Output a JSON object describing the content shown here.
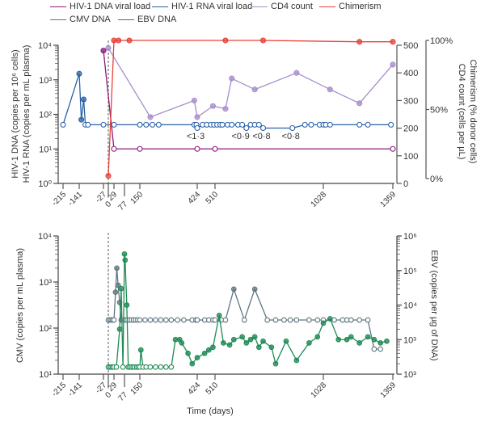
{
  "legend": [
    {
      "label": "HIV-1 DNA viral load",
      "color": "#8b1a7a"
    },
    {
      "label": "HIV-1 RNA viral load",
      "color": "#2a62a8"
    },
    {
      "label": "CD4 count",
      "color": "#a88dcc"
    },
    {
      "label": "Chimerism",
      "color": "#e8413a"
    },
    {
      "label": "CMV DNA",
      "color": "#5f7680"
    },
    {
      "label": "EBV DNA",
      "color": "#1f8a55"
    }
  ],
  "chart_data": [
    {
      "type": "line",
      "panel": "top",
      "xlabel": "",
      "x_ticks": [
        -215,
        -141,
        -27,
        0,
        29,
        77,
        150,
        424,
        510,
        1028,
        1359
      ],
      "x_tick_labels": [
        "-215",
        "-141",
        "-27",
        "0",
        "29",
        "77",
        "150",
        "424",
        "510",
        "1028",
        "1359"
      ],
      "ylabel_left": [
        "HIV-1 DNA (copies per 10⁶ cells)",
        "HIV-1 RNA (copies per mL plasma)"
      ],
      "y_left_scale": "log",
      "y_left_range": [
        1,
        10000
      ],
      "y_left_tick_labels": [
        "10⁰",
        "10¹",
        "10²",
        "10³",
        "10⁴"
      ],
      "ylabel_right": [
        "Chimerism (% donor cells)",
        "CD4 count (cells per µL)"
      ],
      "y_right1_range": [
        0,
        500
      ],
      "y_right1_tick_labels": [
        "0",
        "100",
        "200",
        "300",
        "400",
        "500"
      ],
      "y_right2_range": [
        0,
        100
      ],
      "y_right2_tick_labels": [
        "0%",
        "50%",
        "100%"
      ],
      "transplant_day": 0,
      "annotations": [
        {
          "text": "<1·3",
          "x": 424
        },
        {
          "text": "<0·9",
          "x": 640
        },
        {
          "text": "<0·8",
          "x": 740
        },
        {
          "text": "<0·8",
          "x": 880
        }
      ],
      "series": [
        {
          "name": "HIV-1 DNA viral load",
          "color": "#8b1a7a",
          "axis": "left",
          "marker": "open",
          "x": [
            -27,
            29,
            150,
            424,
            510,
            1359
          ],
          "y": [
            7000,
            10,
            10,
            10,
            10,
            10
          ]
        },
        {
          "name": "HIV-1 RNA viral load",
          "color": "#2a62a8",
          "axis": "left",
          "marker": "mixed",
          "x": [
            -215,
            -141,
            -131,
            -120,
            -112,
            -100,
            -27,
            29,
            150,
            180,
            210,
            240,
            410,
            420,
            424,
            450,
            470,
            490,
            505,
            520,
            535,
            545,
            570,
            590,
            620,
            640,
            660,
            680,
            700,
            720,
            740,
            880,
            940,
            970,
            1010,
            1028,
            1040,
            1060,
            1200,
            1240,
            1350
          ],
          "y": [
            50,
            1500,
            70,
            270,
            50,
            50,
            50,
            50,
            50,
            50,
            50,
            50,
            50,
            50,
            40,
            50,
            50,
            50,
            50,
            50,
            50,
            50,
            50,
            50,
            50,
            50,
            40,
            50,
            50,
            50,
            40,
            40,
            50,
            50,
            50,
            50,
            50,
            50,
            50,
            50,
            50
          ],
          "filled": [
            false,
            true,
            true,
            true,
            false,
            false,
            false,
            false,
            false,
            false,
            false,
            false,
            false,
            false,
            false,
            false,
            false,
            false,
            false,
            false,
            false,
            false,
            false,
            false,
            false,
            false,
            false,
            false,
            false,
            false,
            false,
            false,
            false,
            false,
            false,
            false,
            false,
            false,
            false,
            false,
            false
          ]
        },
        {
          "name": "CD4 count",
          "color": "#a88dcc",
          "axis": "right1",
          "marker": "filled",
          "x": [
            0,
            200,
            410,
            424,
            500,
            560,
            590,
            700,
            900,
            1060,
            1200,
            1359
          ],
          "y": [
            490,
            240,
            300,
            240,
            280,
            270,
            380,
            340,
            400,
            340,
            290,
            430
          ]
        },
        {
          "name": "Chimerism",
          "color": "#e8413a",
          "axis": "right2",
          "marker": "filled",
          "x": [
            0,
            29,
            50,
            100,
            560,
            740,
            1200,
            1359
          ],
          "y": [
            2,
            100,
            100,
            100,
            100,
            100,
            99,
            99
          ]
        }
      ]
    },
    {
      "type": "line",
      "panel": "bottom",
      "xlabel": "Time (days)",
      "x_ticks": [
        -215,
        -141,
        -27,
        0,
        29,
        77,
        150,
        424,
        510,
        1028,
        1359
      ],
      "x_tick_labels": [
        "-215",
        "-141",
        "-27",
        "0",
        "29",
        "77",
        "150",
        "424",
        "510",
        "1028",
        "1359"
      ],
      "ylabel_left": "CMV (copies per mL plasma)",
      "y_left_scale": "log",
      "y_left_range": [
        10,
        10000
      ],
      "y_left_tick_labels": [
        "10¹",
        "10²",
        "10³",
        "10⁴"
      ],
      "ylabel_right": "EBV (copies per µg of DNA)",
      "y_right_scale": "log",
      "y_right_range": [
        1000,
        10000000
      ],
      "y_right_tick_labels": [
        "10³",
        "10³",
        "10⁴",
        "10⁵",
        "10⁶",
        "10⁷"
      ],
      "transplant_day": 0,
      "series": [
        {
          "name": "CMV DNA",
          "color": "#5f7680",
          "axis": "left",
          "x": [
            0,
            8,
            15,
            22,
            29,
            36,
            42,
            48,
            55,
            62,
            70,
            80,
            90,
            100,
            110,
            120,
            130,
            140,
            150,
            175,
            200,
            225,
            250,
            275,
            300,
            330,
            360,
            400,
            418,
            424,
            460,
            480,
            500,
            510,
            540,
            560,
            600,
            650,
            700,
            760,
            800,
            840,
            870,
            900,
            960,
            1000,
            1028,
            1080,
            1120,
            1140,
            1160,
            1200,
            1240,
            1270,
            1300
          ],
          "y": [
            150,
            150,
            150,
            150,
            150,
            600,
            2000,
            850,
            360,
            150,
            150,
            150,
            150,
            150,
            150,
            150,
            150,
            150,
            150,
            150,
            150,
            150,
            150,
            150,
            150,
            150,
            150,
            150,
            150,
            150,
            150,
            150,
            150,
            150,
            150,
            150,
            700,
            150,
            700,
            150,
            150,
            150,
            150,
            150,
            150,
            150,
            150,
            150,
            150,
            150,
            150,
            150,
            150,
            35,
            35
          ],
          "filled": [
            false,
            false,
            false,
            false,
            false,
            true,
            true,
            true,
            true,
            false,
            false,
            false,
            false,
            false,
            false,
            false,
            false,
            false,
            false,
            false,
            false,
            false,
            false,
            false,
            false,
            false,
            false,
            false,
            false,
            false,
            false,
            false,
            false,
            false,
            false,
            false,
            true,
            false,
            true,
            false,
            false,
            false,
            false,
            false,
            false,
            false,
            false,
            false,
            false,
            false,
            false,
            false,
            false,
            false,
            false
          ]
        },
        {
          "name": "EBV DNA",
          "color": "#1f8a55",
          "axis": "right",
          "x": [
            0,
            8,
            15,
            22,
            29,
            40,
            55,
            62,
            70,
            77,
            80,
            88,
            95,
            102,
            110,
            118,
            125,
            135,
            142,
            150,
            155,
            165,
            180,
            200,
            225,
            250,
            275,
            300,
            320,
            340,
            350,
            380,
            400,
            424,
            460,
            480,
            500,
            530,
            550,
            580,
            600,
            640,
            660,
            680,
            700,
            720,
            740,
            780,
            800,
            850,
            900,
            960,
            1000,
            1028,
            1060,
            1100,
            1140,
            1160,
            1200,
            1240,
            1270,
            1300,
            1330
          ],
          "y": [
            1600,
            1600,
            1600,
            1600,
            1600,
            1600,
            20000,
            300000,
            1600,
            3000000,
            2000000,
            100000,
            1600,
            1600,
            1600,
            1600,
            1600,
            1600,
            1600,
            1600,
            5000,
            1600,
            1600,
            1600,
            1600,
            1600,
            1600,
            1600,
            10000,
            10000,
            8000,
            4000,
            2000,
            3000,
            4000,
            5000,
            6000,
            50000,
            8000,
            7000,
            10000,
            12000,
            8000,
            10000,
            12000,
            6000,
            9000,
            6000,
            2000,
            9000,
            2500,
            8000,
            12000,
            30000,
            40000,
            10000,
            10000,
            12000,
            8000,
            12000,
            10000,
            8000,
            9000
          ],
          "filled": [
            false,
            false,
            false,
            false,
            false,
            false,
            true,
            true,
            false,
            true,
            true,
            true,
            false,
            false,
            false,
            false,
            false,
            false,
            false,
            false,
            true,
            false,
            false,
            false,
            false,
            false,
            false,
            false,
            true,
            true,
            true,
            true,
            true,
            true,
            true,
            true,
            true,
            true,
            true,
            true,
            true,
            true,
            true,
            true,
            true,
            true,
            true,
            true,
            true,
            true,
            true,
            true,
            true,
            true,
            true,
            true,
            true,
            true,
            true,
            true,
            true,
            true,
            true
          ]
        }
      ]
    }
  ]
}
